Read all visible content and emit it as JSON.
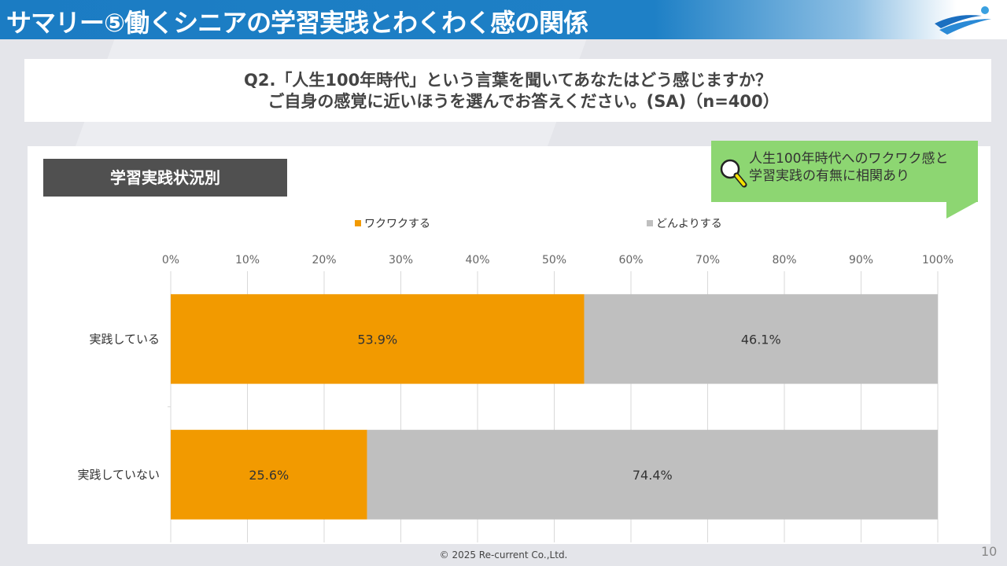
{
  "header": {
    "title": "サマリー⑤働くシニアの学習実践とわくわく感の関係"
  },
  "question": {
    "line1": "Q2.「人生100年時代」という言葉を聞いてあなたはどう感じますか？",
    "line2": "ご自身の感覚に近いほうを選んでお答えください。(SA)（n=400）"
  },
  "subtitle": "学習実践状況別",
  "callout": {
    "line1": "人生100年時代へのワクワク感と",
    "line2": "学習実践の有無に相関あり",
    "icon": "magnifier-icon",
    "color": "#8dd672"
  },
  "chart_data": {
    "type": "bar",
    "orientation": "horizontal",
    "stacked": "100%",
    "categories": [
      "実践している",
      "実践していない"
    ],
    "series": [
      {
        "name": "ワクワクする",
        "values": [
          53.9,
          25.6
        ],
        "labels": [
          "53.9%",
          "25.6%"
        ],
        "color": "#f29a00"
      },
      {
        "name": "どんよりする",
        "values": [
          46.1,
          74.4
        ],
        "labels": [
          "46.1%",
          "74.4%"
        ],
        "color": "#bfbfbf"
      }
    ],
    "xlim": [
      0,
      100
    ],
    "xticks": [
      "0%",
      "10%",
      "20%",
      "30%",
      "40%",
      "50%",
      "60%",
      "70%",
      "80%",
      "90%",
      "100%"
    ],
    "grid": true,
    "legend": "top"
  },
  "footer": "© 2025 Re-current Co.,Ltd.",
  "page_number": "10"
}
